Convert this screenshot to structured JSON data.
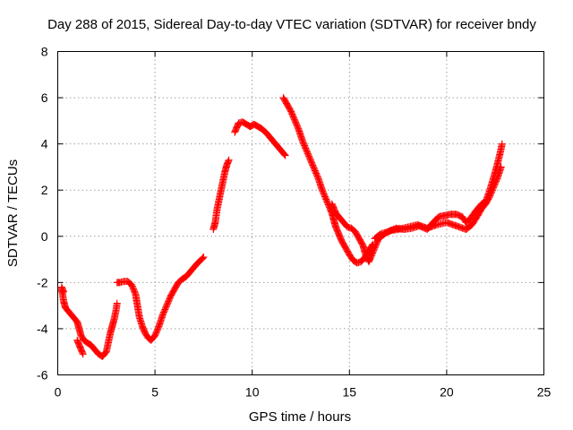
{
  "chart_data": {
    "type": "scatter",
    "title": "Day 288 of 2015, Sidereal Day-to-day VTEC variation (SDTVAR) for receiver bndy",
    "xlabel": "GPS time / hours",
    "ylabel": "SDTVAR / TECUs",
    "xlim": [
      0,
      25
    ],
    "ylim": [
      -6,
      8
    ],
    "xticks": [
      0,
      5,
      10,
      15,
      20,
      25
    ],
    "yticks": [
      -6,
      -4,
      -2,
      0,
      2,
      4,
      6,
      8
    ],
    "xtick_labels": [
      "0",
      "5",
      "10",
      "15",
      "20",
      "25"
    ],
    "ytick_labels": [
      "-6",
      "-4",
      "-2",
      "0",
      "2",
      "4",
      "6",
      "8"
    ],
    "grid": true,
    "marker": "+",
    "color": "#ff0000",
    "series": [
      {
        "segments": [
          [
            [
              0.2,
              -2.3
            ],
            [
              0.25,
              -2.5
            ],
            [
              0.3,
              -2.8
            ],
            [
              0.4,
              -3.1
            ],
            [
              0.6,
              -3.3
            ],
            [
              0.8,
              -3.5
            ],
            [
              1.0,
              -3.7
            ],
            [
              1.1,
              -4.0
            ],
            [
              1.2,
              -4.3
            ],
            [
              1.35,
              -4.5
            ],
            [
              1.5,
              -4.6
            ],
            [
              1.7,
              -4.7
            ],
            [
              1.9,
              -4.9
            ],
            [
              2.1,
              -5.1
            ],
            [
              2.3,
              -5.2
            ],
            [
              2.5,
              -5.0
            ],
            [
              2.6,
              -4.6
            ],
            [
              2.7,
              -4.2
            ],
            [
              2.8,
              -3.9
            ],
            [
              2.9,
              -3.6
            ],
            [
              3.0,
              -3.2
            ],
            [
              3.05,
              -2.9
            ]
          ],
          [
            [
              0.2,
              -2.2
            ],
            [
              0.3,
              -2.4
            ]
          ],
          [
            [
              1.0,
              -4.5
            ],
            [
              1.1,
              -4.7
            ],
            [
              1.2,
              -4.9
            ],
            [
              1.3,
              -5.1
            ]
          ],
          [
            [
              3.05,
              -2.0
            ],
            [
              3.2,
              -2.0
            ],
            [
              3.4,
              -1.95
            ],
            [
              3.6,
              -1.95
            ],
            [
              3.8,
              -2.1
            ],
            [
              4.0,
              -2.5
            ],
            [
              4.1,
              -3.0
            ],
            [
              4.2,
              -3.5
            ],
            [
              4.35,
              -3.9
            ],
            [
              4.5,
              -4.2
            ],
            [
              4.65,
              -4.4
            ],
            [
              4.8,
              -4.5
            ],
            [
              5.0,
              -4.3
            ],
            [
              5.2,
              -3.9
            ],
            [
              5.4,
              -3.4
            ],
            [
              5.6,
              -3.0
            ],
            [
              5.8,
              -2.6
            ],
            [
              6.0,
              -2.3
            ],
            [
              6.2,
              -2.0
            ],
            [
              6.4,
              -1.85
            ],
            [
              6.6,
              -1.75
            ],
            [
              6.8,
              -1.55
            ],
            [
              7.0,
              -1.35
            ],
            [
              7.2,
              -1.15
            ],
            [
              7.4,
              -1.0
            ],
            [
              7.5,
              -0.9
            ]
          ],
          [
            [
              8.0,
              0.3
            ],
            [
              8.1,
              0.6
            ],
            [
              8.2,
              1.2
            ],
            [
              8.3,
              1.6
            ],
            [
              8.4,
              2.0
            ],
            [
              8.5,
              2.4
            ],
            [
              8.6,
              2.8
            ],
            [
              8.7,
              3.1
            ],
            [
              8.8,
              3.3
            ]
          ],
          [
            [
              9.1,
              4.5
            ],
            [
              9.2,
              4.7
            ],
            [
              9.3,
              4.9
            ],
            [
              9.5,
              4.95
            ],
            [
              9.7,
              4.85
            ],
            [
              9.9,
              4.75
            ],
            [
              10.1,
              4.85
            ],
            [
              10.3,
              4.75
            ],
            [
              10.5,
              4.65
            ],
            [
              10.7,
              4.5
            ],
            [
              10.9,
              4.3
            ],
            [
              11.1,
              4.1
            ],
            [
              11.3,
              3.9
            ],
            [
              11.5,
              3.7
            ],
            [
              11.7,
              3.5
            ]
          ],
          [
            [
              11.6,
              6.0
            ],
            [
              11.8,
              5.7
            ],
            [
              12.0,
              5.4
            ],
            [
              12.2,
              5.0
            ],
            [
              12.4,
              4.6
            ],
            [
              12.6,
              4.1
            ],
            [
              12.8,
              3.7
            ],
            [
              13.0,
              3.3
            ],
            [
              13.2,
              2.9
            ],
            [
              13.4,
              2.5
            ],
            [
              13.6,
              2.0
            ],
            [
              13.8,
              1.6
            ],
            [
              14.0,
              1.2
            ],
            [
              14.1,
              1.0
            ],
            [
              14.2,
              0.7
            ],
            [
              14.3,
              0.4
            ],
            [
              14.45,
              0.1
            ],
            [
              14.6,
              -0.2
            ],
            [
              14.8,
              -0.5
            ],
            [
              15.0,
              -0.8
            ],
            [
              15.2,
              -1.05
            ],
            [
              15.4,
              -1.15
            ],
            [
              15.6,
              -1.1
            ],
            [
              15.8,
              -0.9
            ],
            [
              16.0,
              -0.6
            ],
            [
              16.2,
              -0.35
            ]
          ],
          [
            [
              14.1,
              1.4
            ],
            [
              14.2,
              1.2
            ],
            [
              14.3,
              1.0
            ],
            [
              14.5,
              0.8
            ],
            [
              14.7,
              0.6
            ],
            [
              14.9,
              0.4
            ],
            [
              15.1,
              0.35
            ],
            [
              15.3,
              0.2
            ],
            [
              15.5,
              -0.1
            ],
            [
              15.7,
              -0.4
            ],
            [
              15.8,
              -0.7
            ],
            [
              15.9,
              -0.9
            ],
            [
              16.0,
              -1.1
            ],
            [
              16.1,
              -0.9
            ],
            [
              16.3,
              -0.5
            ],
            [
              16.5,
              -0.1
            ],
            [
              16.8,
              0.1
            ],
            [
              17.1,
              0.25
            ],
            [
              17.5,
              0.3
            ],
            [
              18.0,
              0.4
            ],
            [
              18.5,
              0.5
            ],
            [
              19.0,
              0.35
            ],
            [
              19.5,
              0.5
            ],
            [
              20.0,
              0.6
            ],
            [
              20.5,
              0.45
            ],
            [
              21.0,
              0.3
            ],
            [
              21.3,
              0.5
            ],
            [
              21.6,
              0.9
            ],
            [
              21.8,
              1.2
            ],
            [
              22.0,
              1.4
            ],
            [
              22.2,
              1.7
            ],
            [
              22.4,
              2.1
            ],
            [
              22.6,
              2.5
            ],
            [
              22.8,
              3.0
            ]
          ],
          [
            [
              16.3,
              -0.1
            ],
            [
              16.6,
              0.1
            ],
            [
              17.0,
              0.2
            ],
            [
              17.4,
              0.35
            ],
            [
              17.8,
              0.3
            ],
            [
              18.2,
              0.35
            ],
            [
              18.6,
              0.45
            ],
            [
              19.0,
              0.3
            ],
            [
              19.3,
              0.6
            ],
            [
              19.6,
              0.85
            ],
            [
              19.9,
              0.9
            ],
            [
              20.2,
              0.95
            ],
            [
              20.5,
              0.95
            ],
            [
              20.8,
              0.85
            ],
            [
              21.0,
              0.6
            ],
            [
              21.2,
              0.75
            ],
            [
              21.5,
              1.1
            ],
            [
              21.8,
              1.4
            ],
            [
              22.0,
              1.5
            ],
            [
              22.2,
              1.95
            ],
            [
              22.4,
              2.5
            ],
            [
              22.6,
              3.1
            ],
            [
              22.75,
              3.6
            ],
            [
              22.85,
              4.0
            ]
          ]
        ]
      }
    ]
  }
}
